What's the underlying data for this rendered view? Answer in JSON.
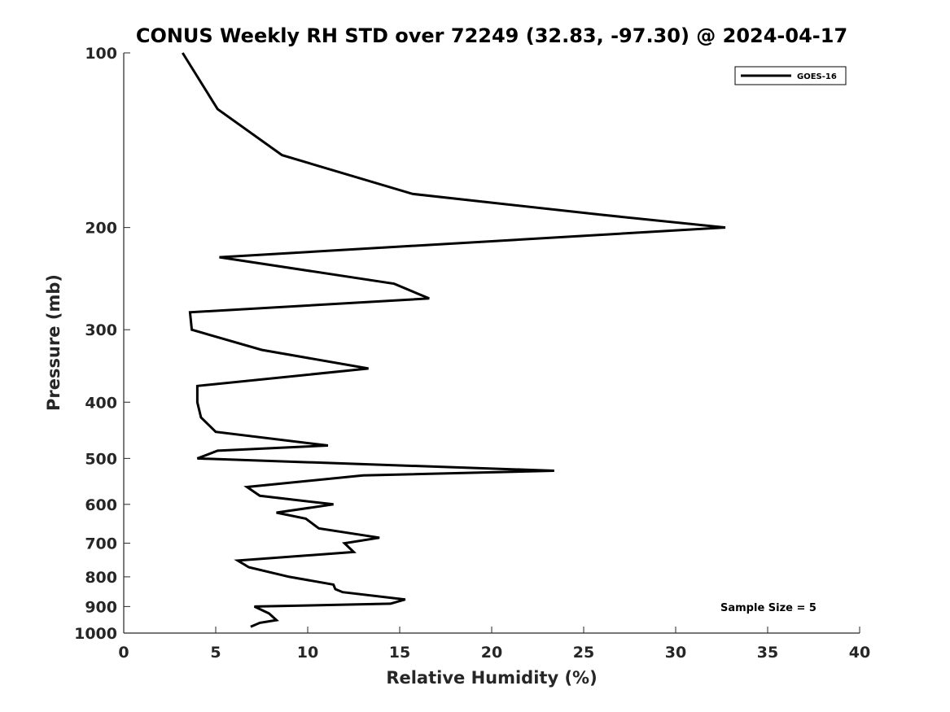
{
  "chart_data": {
    "type": "line",
    "title": "CONUS Weekly RH STD over 72249 (32.83, -97.30) @ 2024-04-17",
    "xlabel": "Relative Humidity (%)",
    "ylabel": "Pressure (mb)",
    "xlim": [
      0,
      40
    ],
    "ylim": [
      100,
      1000
    ],
    "y_scale": "log",
    "y_reversed": true,
    "x_ticks": [
      "0",
      "5",
      "10",
      "15",
      "20",
      "25",
      "30",
      "35",
      "40"
    ],
    "y_ticks": [
      "100",
      "200",
      "300",
      "400",
      "500",
      "600",
      "700",
      "800",
      "900",
      "1000"
    ],
    "grid": false,
    "legend_position": "top-right",
    "annotation": "Sample Size = 5",
    "series": [
      {
        "name": "GOES-16",
        "color": "#000000",
        "points": [
          [
            3.2,
            100
          ],
          [
            5.1,
            125
          ],
          [
            8.6,
            150
          ],
          [
            15.7,
            175
          ],
          [
            25.9,
            190
          ],
          [
            32.7,
            200
          ],
          [
            5.2,
            225
          ],
          [
            14.7,
            250
          ],
          [
            16.6,
            265
          ],
          [
            3.6,
            280
          ],
          [
            3.7,
            300
          ],
          [
            7.5,
            325
          ],
          [
            13.3,
            350
          ],
          [
            4.0,
            375
          ],
          [
            4.0,
            400
          ],
          [
            4.2,
            425
          ],
          [
            5.0,
            450
          ],
          [
            11.1,
            475
          ],
          [
            5.1,
            485
          ],
          [
            4.0,
            500
          ],
          [
            23.4,
            525
          ],
          [
            13.0,
            535
          ],
          [
            6.7,
            560
          ],
          [
            7.4,
            580
          ],
          [
            11.4,
            600
          ],
          [
            8.3,
            620
          ],
          [
            9.9,
            635
          ],
          [
            10.6,
            660
          ],
          [
            13.9,
            685
          ],
          [
            12.0,
            700
          ],
          [
            12.5,
            725
          ],
          [
            6.2,
            750
          ],
          [
            6.8,
            770
          ],
          [
            9.0,
            800
          ],
          [
            11.4,
            825
          ],
          [
            11.5,
            840
          ],
          [
            11.9,
            850
          ],
          [
            15.3,
            875
          ],
          [
            14.5,
            890
          ],
          [
            7.1,
            900
          ],
          [
            7.9,
            925
          ],
          [
            8.3,
            950
          ],
          [
            7.4,
            960
          ],
          [
            6.9,
            975
          ]
        ]
      }
    ]
  }
}
